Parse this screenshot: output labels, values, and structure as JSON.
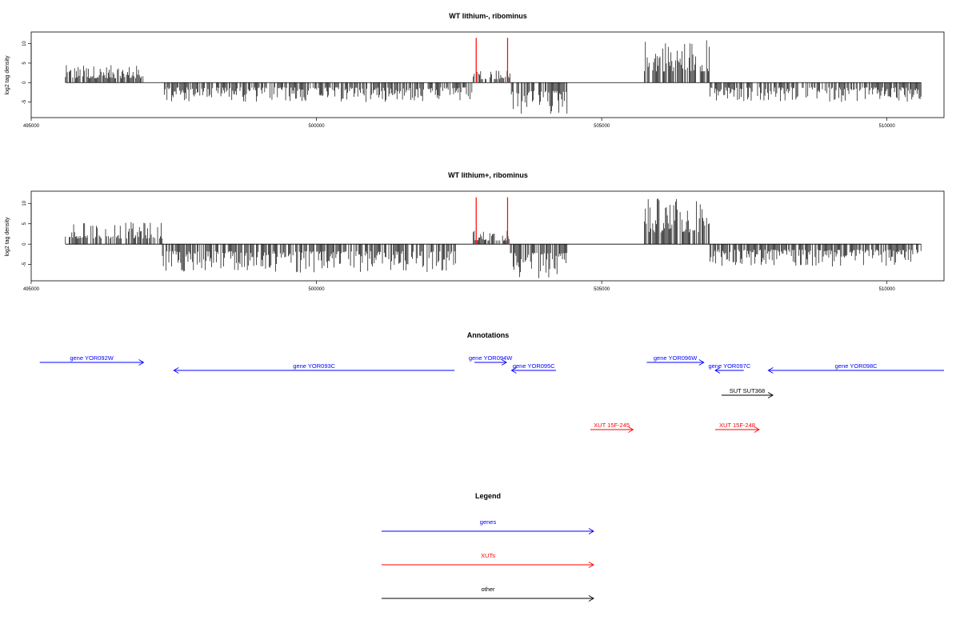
{
  "chart_data": [
    {
      "type": "bar",
      "title": "WT lithium-, ribominus",
      "xlabel": "",
      "ylabel": "log2 tag density",
      "xlim": [
        495000,
        511000
      ],
      "ylim": [
        -9,
        13
      ],
      "x_ticks": [
        495000,
        500000,
        505000,
        510000
      ],
      "y_ticks": [
        -5,
        0,
        5,
        10
      ],
      "data_range": [
        495600,
        510600
      ],
      "highlight_positions": [
        502800,
        503350
      ],
      "highlight_value": 11.5,
      "highlight_color": "#ff0000",
      "bar_color": "#000000",
      "density_profile": [
        {
          "from": 495600,
          "to": 497000,
          "sign": 1,
          "max": 4.5
        },
        {
          "from": 497300,
          "to": 502750,
          "sign": -1,
          "max": 5
        },
        {
          "from": 502750,
          "to": 503400,
          "sign": 1,
          "max": 3.5
        },
        {
          "from": 503400,
          "to": 504400,
          "sign": -1,
          "max": 8.5
        },
        {
          "from": 505750,
          "to": 506900,
          "sign": 1,
          "max": 11.5
        },
        {
          "from": 506900,
          "to": 510600,
          "sign": -1,
          "max": 5
        }
      ]
    },
    {
      "type": "bar",
      "title": "WT lithium+, ribominus",
      "xlabel": "",
      "ylabel": "log2 tag density",
      "xlim": [
        495000,
        511000
      ],
      "ylim": [
        -9,
        13
      ],
      "x_ticks": [
        495000,
        500000,
        505000,
        510000
      ],
      "y_ticks": [
        -5,
        0,
        5,
        10
      ],
      "data_range": [
        495600,
        510600
      ],
      "highlight_positions": [
        502800,
        503350
      ],
      "highlight_value": 11.5,
      "highlight_color": "#ff0000",
      "bar_color": "#000000",
      "density_profile": [
        {
          "from": 495600,
          "to": 497300,
          "sign": 1,
          "max": 5.5
        },
        {
          "from": 497300,
          "to": 502450,
          "sign": -1,
          "max": 7
        },
        {
          "from": 502750,
          "to": 503400,
          "sign": 1,
          "max": 3.5
        },
        {
          "from": 503400,
          "to": 504400,
          "sign": -1,
          "max": 8.5
        },
        {
          "from": 505750,
          "to": 506900,
          "sign": 1,
          "max": 11.5
        },
        {
          "from": 506900,
          "to": 510600,
          "sign": -1,
          "max": 5.5
        }
      ]
    }
  ],
  "annotations": {
    "title": "Annotations",
    "xlim": [
      495000,
      511000
    ],
    "features": [
      {
        "label": "gene YOR092W",
        "start": 495150,
        "end": 496970,
        "strand": "+",
        "color": "#0000ff",
        "track": 0
      },
      {
        "label": "gene YOR093C",
        "start": 497500,
        "end": 502420,
        "strand": "-",
        "color": "#0000ff",
        "track": 1
      },
      {
        "label": "gene YOR094W",
        "start": 502770,
        "end": 503330,
        "strand": "+",
        "color": "#0000ff",
        "track": 0
      },
      {
        "label": "gene YOR095C",
        "start": 503420,
        "end": 504200,
        "strand": "-",
        "color": "#0000ff",
        "track": 1
      },
      {
        "label": "gene YOR096W",
        "start": 505790,
        "end": 506790,
        "strand": "+",
        "color": "#0000ff",
        "track": 0
      },
      {
        "label": "gene YOR097C",
        "start": 506990,
        "end": 507490,
        "strand": "-",
        "color": "#0000ff",
        "track": 1
      },
      {
        "label": "gene YOR098C",
        "start": 507920,
        "end": 511000,
        "strand": "-",
        "color": "#0000ff",
        "track": 1
      },
      {
        "label": "SUT SUT368",
        "start": 507100,
        "end": 508000,
        "strand": "+",
        "color": "#000000",
        "track": 2
      },
      {
        "label": "XUT 15F-245",
        "start": 504800,
        "end": 505550,
        "strand": "+",
        "color": "#ff0000",
        "track": 3
      },
      {
        "label": "XUT 15F-248",
        "start": 506990,
        "end": 507760,
        "strand": "+",
        "color": "#ff0000",
        "track": 3
      }
    ]
  },
  "legend": {
    "title": "Legend",
    "items": [
      {
        "label": "genes",
        "color": "#0000ff"
      },
      {
        "label": "XUTs",
        "color": "#ff0000"
      },
      {
        "label": "other",
        "color": "#000000"
      }
    ]
  }
}
